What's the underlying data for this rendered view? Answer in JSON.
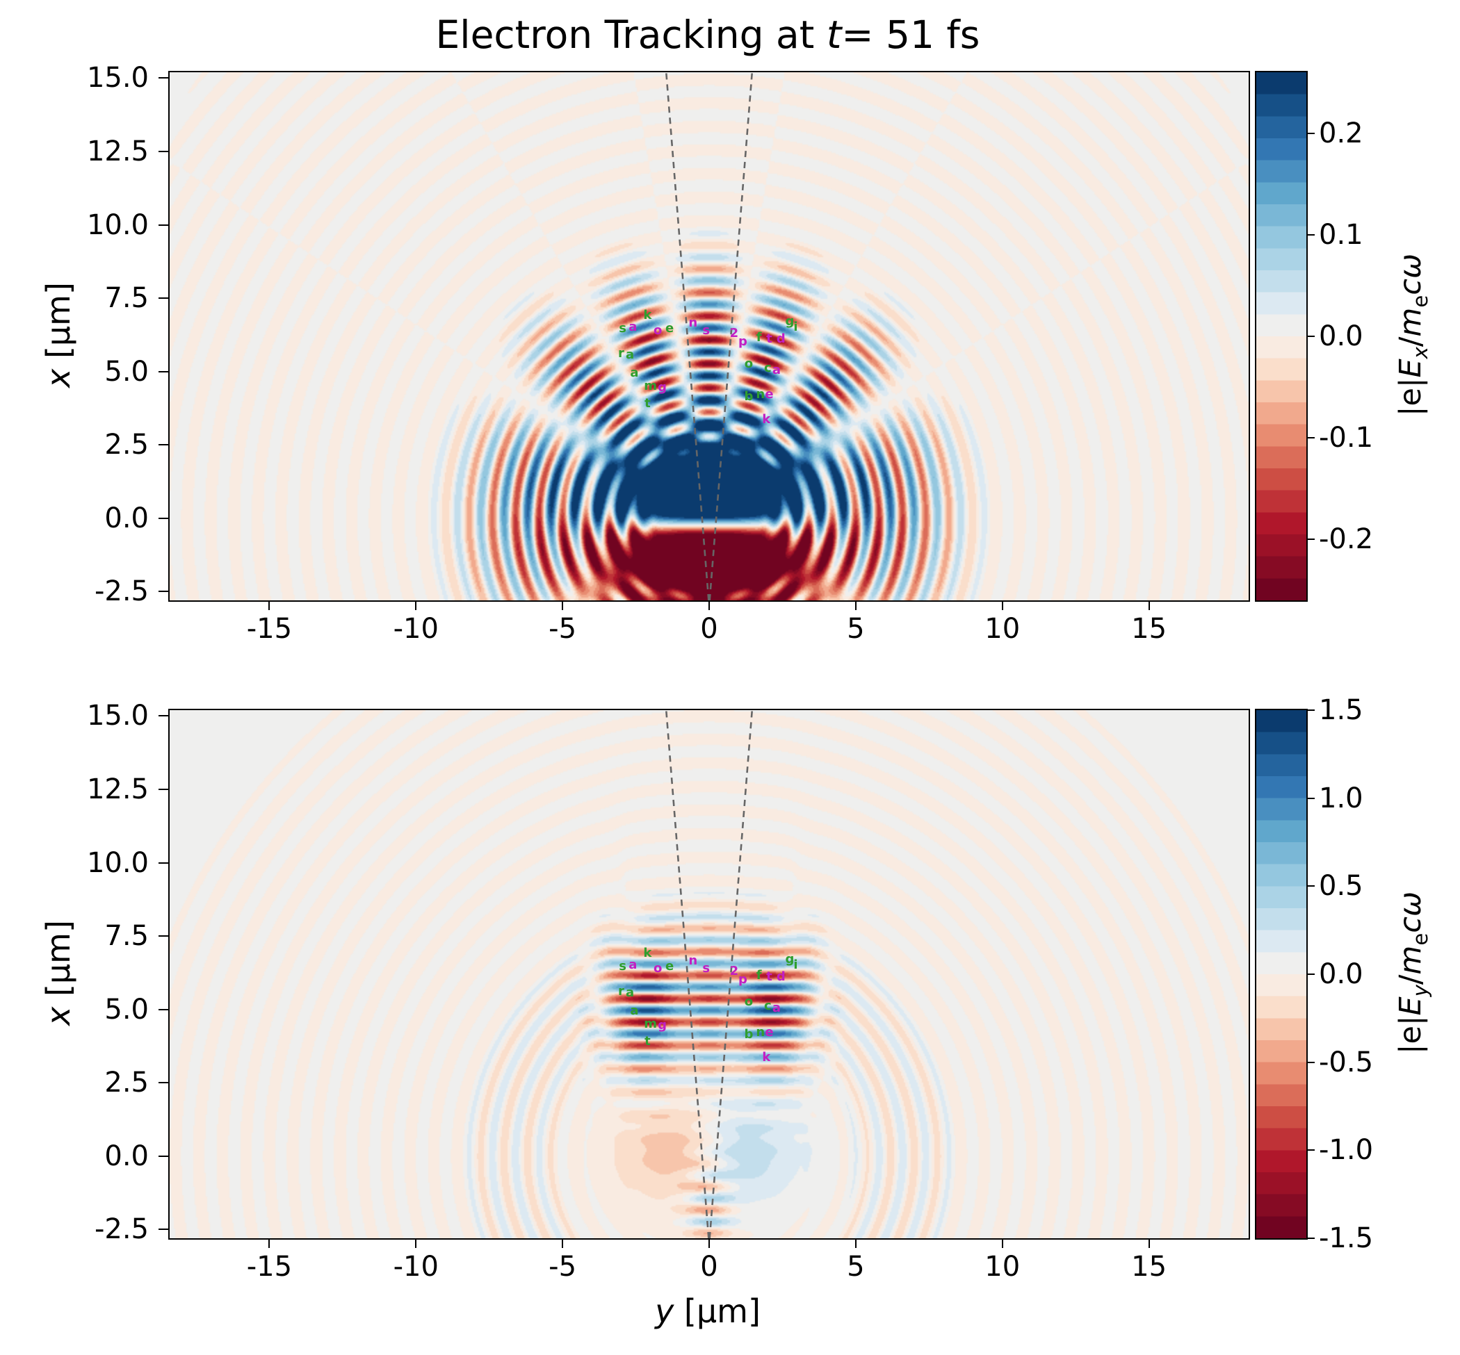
{
  "figure": {
    "background": "#ffffff",
    "spine_color": "#000000",
    "tick_color": "#000000"
  },
  "chart_data": {
    "type": "heatmap",
    "title": "Electron Tracking at t= 51 fs",
    "title_parts": [
      {
        "text": "Electron Tracking at "
      },
      {
        "text": "t",
        "italic": true
      },
      {
        "text": "= 51 fs"
      }
    ],
    "xlabel": "y [μm]",
    "xlabel_parts": [
      {
        "text": "y",
        "italic": true
      },
      {
        "text": " [μm]"
      }
    ],
    "ylabel": "x [μm]",
    "ylabel_parts": [
      {
        "text": "x",
        "italic": true
      },
      {
        "text": " [μm]"
      }
    ],
    "xlim": [
      -18.4,
      18.4
    ],
    "ylim": [
      -2.8,
      15.2
    ],
    "xtick_values": [
      -15,
      -10,
      -5,
      0,
      5,
      10,
      15
    ],
    "xtick_labels": [
      "-15",
      "-10",
      "-5",
      "0",
      "5",
      "10",
      "15"
    ],
    "ytick_values": [
      15.0,
      12.5,
      10.0,
      7.5,
      5.0,
      2.5,
      0.0,
      -2.5
    ],
    "ytick_labels": [
      "15.0",
      "12.5",
      "10.0",
      "7.5",
      "5.0",
      "2.5",
      "0.0",
      "-2.5"
    ],
    "grid": false,
    "colormap": {
      "name": "RdBu-diverging",
      "levels": 24,
      "stops": [
        [
          -1.0,
          "#67001f"
        ],
        [
          -0.85,
          "#8c0d25"
        ],
        [
          -0.7,
          "#b2182b"
        ],
        [
          -0.55,
          "#cc4b42"
        ],
        [
          -0.4,
          "#e58368"
        ],
        [
          -0.25,
          "#f5b89b"
        ],
        [
          -0.12,
          "#fadfcd"
        ],
        [
          0.0,
          "#f8f2ec"
        ],
        [
          0.12,
          "#ddeaf2"
        ],
        [
          0.25,
          "#b7d9e9"
        ],
        [
          0.4,
          "#8dc3dd"
        ],
        [
          0.55,
          "#5da5cb"
        ],
        [
          0.7,
          "#3479b5"
        ],
        [
          0.85,
          "#1a568f"
        ],
        [
          1.0,
          "#053061"
        ]
      ]
    },
    "cone": {
      "focus_x": 0,
      "focus_y": -3,
      "slope": 0.0805,
      "color": "#666666",
      "width": 2.6,
      "dash": "9 7"
    },
    "panels": [
      {
        "name": "Ex",
        "colorbar": {
          "vmin": -0.26,
          "vmax": 0.26,
          "tick_values": [
            0.2,
            0.1,
            0.0,
            -0.1,
            -0.2
          ],
          "tick_labels": [
            "0.2",
            "0.1",
            "0.0",
            "-0.1",
            "-0.2"
          ],
          "label": "|e|Ex/mecω",
          "label_parts": [
            {
              "text": "|e|"
            },
            {
              "text": "E",
              "italic": true
            },
            {
              "text": "x",
              "sub": true,
              "italic": true
            },
            {
              "text": "/"
            },
            {
              "text": "m",
              "italic": true
            },
            {
              "text": "e",
              "sub": true
            },
            {
              "text": "c",
              "italic": true
            },
            {
              "text": "ω",
              "italic": true
            }
          ]
        },
        "field": {
          "model": "rings",
          "wavelength_um": 0.8,
          "source_half_sep_um": 1.2,
          "ring_amp": 0.125,
          "ring_inner_r": 1.7,
          "ring_peak_r": 5.4,
          "ring_sigma": 2.9,
          "core_amp": 0.75,
          "core_sigma_y_um": 3.6,
          "core_sigma_x_um": 2.6,
          "core_bias": 0.25,
          "core_sharp": 1.3
        }
      },
      {
        "name": "Ey",
        "colorbar": {
          "vmin": -1.5,
          "vmax": 1.5,
          "tick_values": [
            1.5,
            1.0,
            0.5,
            0.0,
            -0.5,
            -1.0,
            -1.5
          ],
          "tick_labels": [
            "1.5",
            "1.0",
            "0.5",
            "0.0",
            "-0.5",
            "-1.0",
            "-1.5"
          ],
          "label": "|e|Ey/mecω",
          "label_parts": [
            {
              "text": "|e|"
            },
            {
              "text": "E",
              "italic": true
            },
            {
              "text": "y",
              "sub": true,
              "italic": true
            },
            {
              "text": "/"
            },
            {
              "text": "m",
              "italic": true
            },
            {
              "text": "e",
              "sub": true
            },
            {
              "text": "c",
              "italic": true
            },
            {
              "text": "ω",
              "italic": true
            }
          ]
        },
        "field": {
          "model": "stripes",
          "wavelength_um": 0.8,
          "stripe_amp": 1.35,
          "stripe_center_x_um": 5.1,
          "stripe_sigma_x_um": 2.3,
          "lobe_offset_y_um": 2.1,
          "lobe_sigma_y_um": 1.3,
          "mid_amp": 0.55,
          "mid_sigma_y_um": 0.75,
          "phase": 0.3,
          "arc_amp": 0.22,
          "arc_r": 6.8,
          "arc_sigma": 2.2,
          "dipole_amp": 0.5,
          "tail_amp": 0.5
        }
      }
    ],
    "markers": {
      "colors": {
        "g": "#2f9e2f",
        "m": "#c21fc2"
      },
      "points": [
        {
          "ch": "k",
          "y": -2.1,
          "x": 6.9,
          "c": "g"
        },
        {
          "ch": "s",
          "y": -2.95,
          "x": 6.45,
          "c": "g"
        },
        {
          "ch": "a",
          "y": -2.6,
          "x": 6.5,
          "c": "m"
        },
        {
          "ch": "o",
          "y": -1.75,
          "x": 6.4,
          "c": "m"
        },
        {
          "ch": "e",
          "y": -1.35,
          "x": 6.45,
          "c": "g"
        },
        {
          "ch": "n",
          "y": -0.55,
          "x": 6.65,
          "c": "m"
        },
        {
          "ch": "s",
          "y": -0.1,
          "x": 6.4,
          "c": "m"
        },
        {
          "ch": "2",
          "y": 0.85,
          "x": 6.3,
          "c": "m"
        },
        {
          "ch": "g",
          "y": 2.75,
          "x": 6.7,
          "c": "g"
        },
        {
          "ch": "i",
          "y": 2.95,
          "x": 6.5,
          "c": "g"
        },
        {
          "ch": "f",
          "y": 1.7,
          "x": 6.15,
          "c": "g"
        },
        {
          "ch": "t",
          "y": 2.05,
          "x": 6.1,
          "c": "m"
        },
        {
          "ch": "d",
          "y": 2.45,
          "x": 6.1,
          "c": "m"
        },
        {
          "ch": "p",
          "y": 1.15,
          "x": 6.0,
          "c": "m"
        },
        {
          "ch": "r",
          "y": -3.0,
          "x": 5.6,
          "c": "g"
        },
        {
          "ch": "a",
          "y": -2.7,
          "x": 5.55,
          "c": "g"
        },
        {
          "ch": "a",
          "y": -2.55,
          "x": 4.95,
          "c": "g"
        },
        {
          "ch": "o",
          "y": 1.35,
          "x": 5.25,
          "c": "g"
        },
        {
          "ch": "c",
          "y": 2.0,
          "x": 5.1,
          "c": "g"
        },
        {
          "ch": "a",
          "y": 2.3,
          "x": 5.05,
          "c": "m"
        },
        {
          "ch": "m",
          "y": -2.0,
          "x": 4.5,
          "c": "g"
        },
        {
          "ch": "g",
          "y": -1.6,
          "x": 4.45,
          "c": "m"
        },
        {
          "ch": "b",
          "y": 1.35,
          "x": 4.15,
          "c": "g"
        },
        {
          "ch": "n",
          "y": 1.75,
          "x": 4.2,
          "c": "g"
        },
        {
          "ch": "e",
          "y": 2.05,
          "x": 4.2,
          "c": "m"
        },
        {
          "ch": "t",
          "y": -2.1,
          "x": 3.9,
          "c": "g"
        },
        {
          "ch": "k",
          "y": 1.95,
          "x": 3.35,
          "c": "m"
        }
      ]
    }
  }
}
